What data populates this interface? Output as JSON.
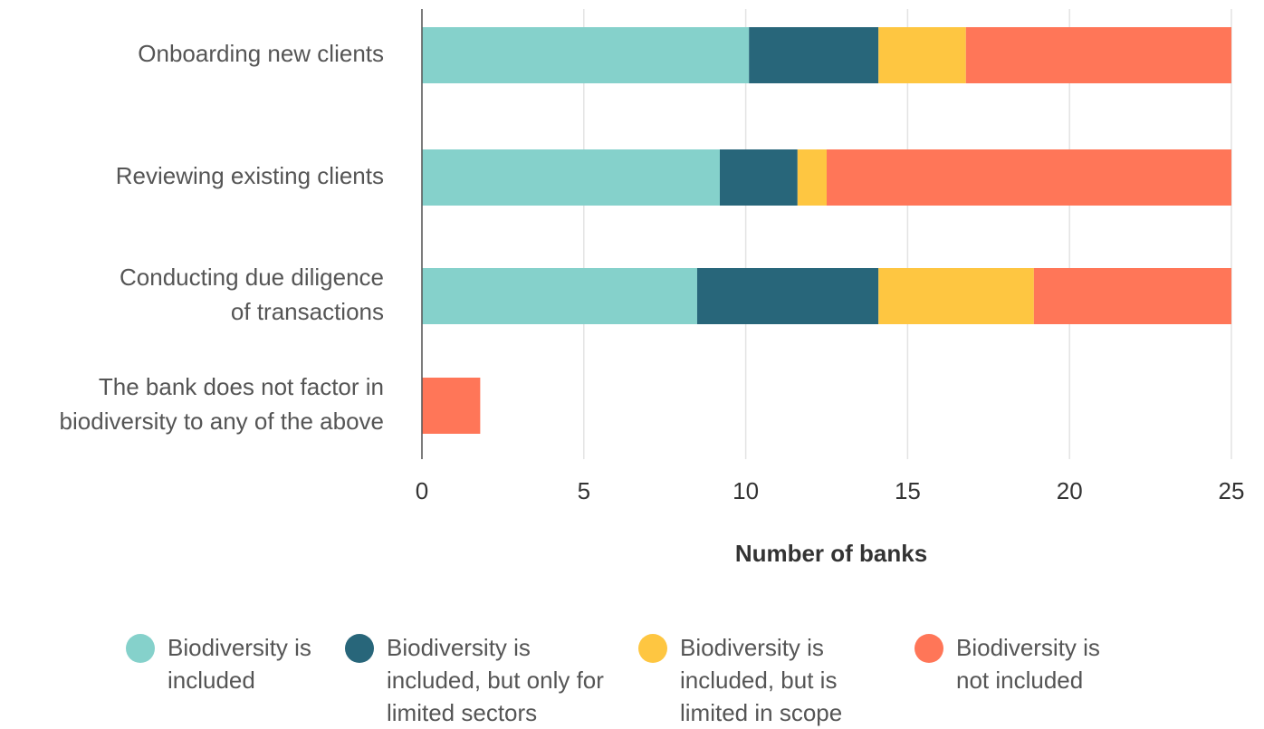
{
  "chart_data": {
    "type": "stacked-barh",
    "categories": [
      [
        "Onboarding new clients"
      ],
      [
        "Reviewing existing clients"
      ],
      [
        "Conducting due diligence",
        "of transactions"
      ],
      [
        "The bank does not factor in",
        "biodiversity to any of the above"
      ]
    ],
    "series": [
      {
        "name": "Biodiversity is included",
        "color": "#85d1cb",
        "values": [
          10.1,
          9.2,
          8.5,
          0
        ]
      },
      {
        "name": "Biodiversity is included, but only for limited sectors",
        "color": "#28667a",
        "values": [
          4,
          2.4,
          5.6,
          0
        ]
      },
      {
        "name": "Biodiversity is included, but is limited in scope",
        "color": "#fec641",
        "values": [
          2.7,
          0.9,
          4.8,
          0
        ]
      },
      {
        "name": "Biodiversity is not included",
        "color": "#ff7658",
        "values": [
          8.2,
          12.5,
          6.1,
          1.8
        ]
      }
    ],
    "xlabel": "Number of banks",
    "xlim": [
      0,
      25
    ],
    "xticks": [
      0,
      5,
      10,
      15,
      20,
      25
    ],
    "grid": true
  }
}
